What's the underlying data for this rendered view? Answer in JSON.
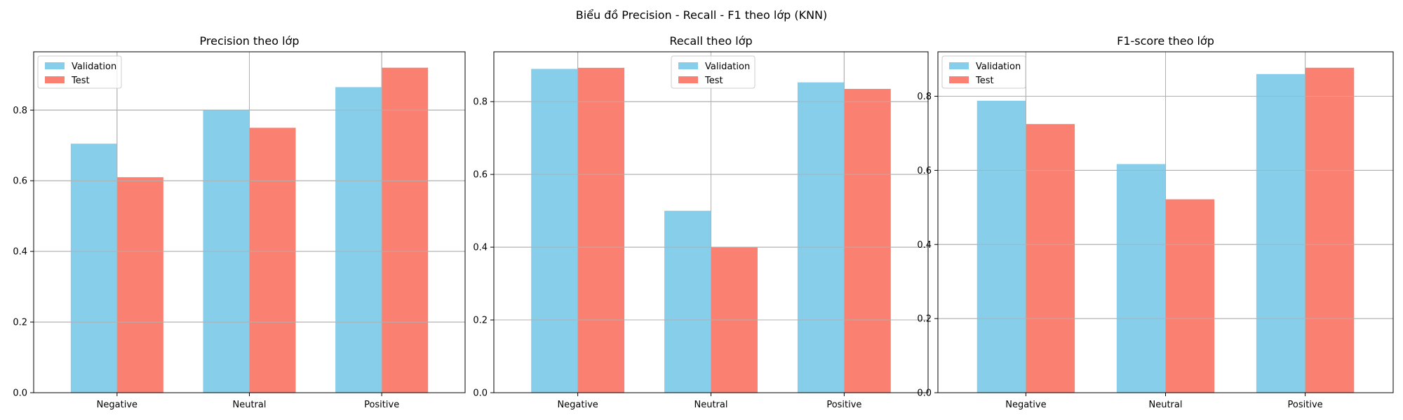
{
  "figure": {
    "suptitle": "Biểu đồ Precision - Recall - F1 theo lớp (KNN)"
  },
  "colors": {
    "validation": "#87CEEB",
    "test": "#FA8072",
    "grid": "#b0b0b0",
    "axis": "#000000"
  },
  "chart_data": [
    {
      "type": "bar",
      "title": "Precision theo lớp",
      "xlabel": "",
      "ylabel": "",
      "categories": [
        "Negative",
        "Neutral",
        "Positive"
      ],
      "series": [
        {
          "name": "Validation",
          "values": [
            0.705,
            0.8,
            0.865
          ]
        },
        {
          "name": "Test",
          "values": [
            0.61,
            0.75,
            0.92
          ]
        }
      ],
      "ylim": [
        0,
        0.965
      ],
      "yticks": [
        "0.0",
        "0.2",
        "0.4",
        "0.6",
        "0.8"
      ],
      "grid": true,
      "legend": "top-left"
    },
    {
      "type": "bar",
      "title": "Recall theo lớp",
      "xlabel": "",
      "ylabel": "",
      "categories": [
        "Negative",
        "Neutral",
        "Positive"
      ],
      "series": [
        {
          "name": "Validation",
          "values": [
            0.89,
            0.5,
            0.853
          ]
        },
        {
          "name": "Test",
          "values": [
            0.893,
            0.4,
            0.835
          ]
        }
      ],
      "ylim": [
        0,
        0.937
      ],
      "yticks": [
        "0.0",
        "0.2",
        "0.4",
        "0.6",
        "0.8"
      ],
      "grid": true,
      "legend": "top-center"
    },
    {
      "type": "bar",
      "title": "F1-score theo lớp",
      "xlabel": "",
      "ylabel": "",
      "categories": [
        "Negative",
        "Neutral",
        "Positive"
      ],
      "series": [
        {
          "name": "Validation",
          "values": [
            0.788,
            0.617,
            0.86
          ]
        },
        {
          "name": "Test",
          "values": [
            0.725,
            0.522,
            0.877
          ]
        }
      ],
      "ylim": [
        0,
        0.92
      ],
      "yticks": [
        "0.0",
        "0.2",
        "0.4",
        "0.6",
        "0.8"
      ],
      "grid": true,
      "legend": "top-left"
    }
  ]
}
